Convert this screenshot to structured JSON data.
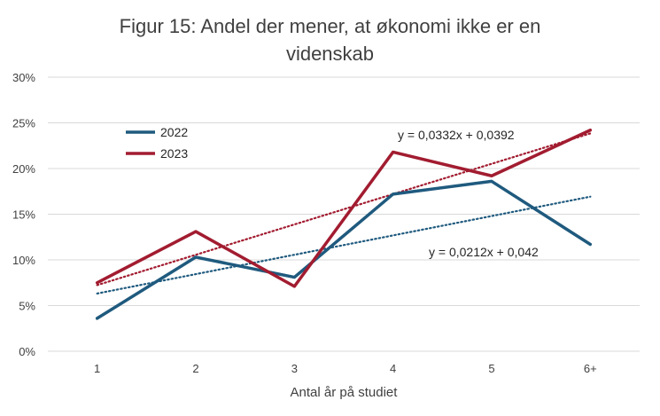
{
  "chart_data": {
    "type": "line",
    "title_lines": [
      "Figur 15: Andel der mener, at økonomi ikke er en",
      "videnskab"
    ],
    "xlabel": "Antal år på studiet",
    "ylabel": "",
    "categories": [
      "1",
      "2",
      "3",
      "4",
      "5",
      "6+"
    ],
    "yticks": [
      "0%",
      "5%",
      "10%",
      "15%",
      "20%",
      "25%",
      "30%"
    ],
    "ylim": [
      0,
      0.3
    ],
    "grid": true,
    "legend_position": "top-left",
    "series": [
      {
        "name": "2022",
        "color": "#1F5A7E",
        "values": [
          0.036,
          0.103,
          0.081,
          0.172,
          0.186,
          0.117
        ],
        "trendline": {
          "slope": 0.0212,
          "intercept": 0.042,
          "label": "y = 0,0212x + 0,042",
          "color": "#1F5A7E"
        }
      },
      {
        "name": "2023",
        "color": "#A21C30",
        "values": [
          0.075,
          0.131,
          0.071,
          0.218,
          0.192,
          0.242
        ],
        "trendline": {
          "slope": 0.0332,
          "intercept": 0.0392,
          "label": "y = 0,0332x + 0,0392",
          "color": "#A21C30"
        }
      }
    ],
    "gridline_color": "#D9D9D9"
  }
}
